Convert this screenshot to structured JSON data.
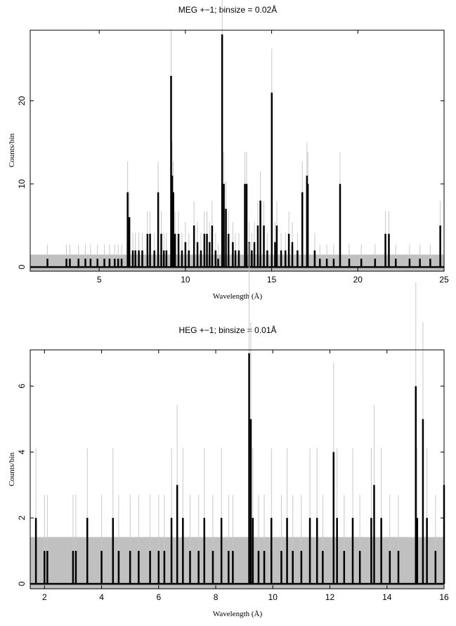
{
  "chart_data": [
    {
      "type": "line",
      "title": "MEG +−1; binsize = 0.02Å",
      "xlabel": "Wavelength (Å)",
      "ylabel": "Counts/bin",
      "xlim": [
        1,
        25
      ],
      "ylim": [
        -0.5,
        28.5
      ],
      "xticks": [
        5,
        10,
        15,
        20,
        25
      ],
      "yticks": [
        0,
        10,
        20
      ],
      "background_band": [
        0,
        1.5
      ],
      "colors": {
        "band": "#c0c0c0",
        "errors": "#c8c8c8",
        "data": "#000000"
      },
      "lines": [
        {
          "x": 2.0,
          "y": 1
        },
        {
          "x": 3.1,
          "y": 1
        },
        {
          "x": 3.3,
          "y": 1
        },
        {
          "x": 3.8,
          "y": 1
        },
        {
          "x": 4.2,
          "y": 1
        },
        {
          "x": 4.5,
          "y": 1
        },
        {
          "x": 4.9,
          "y": 1
        },
        {
          "x": 5.3,
          "y": 1
        },
        {
          "x": 5.6,
          "y": 1
        },
        {
          "x": 5.9,
          "y": 1
        },
        {
          "x": 6.1,
          "y": 1
        },
        {
          "x": 6.3,
          "y": 1
        },
        {
          "x": 6.65,
          "y": 9
        },
        {
          "x": 6.75,
          "y": 6
        },
        {
          "x": 6.95,
          "y": 2
        },
        {
          "x": 7.1,
          "y": 2
        },
        {
          "x": 7.3,
          "y": 2
        },
        {
          "x": 7.5,
          "y": 2
        },
        {
          "x": 7.8,
          "y": 4
        },
        {
          "x": 7.95,
          "y": 4
        },
        {
          "x": 8.2,
          "y": 2
        },
        {
          "x": 8.42,
          "y": 9
        },
        {
          "x": 8.6,
          "y": 4
        },
        {
          "x": 8.75,
          "y": 2
        },
        {
          "x": 8.9,
          "y": 2
        },
        {
          "x": 9.17,
          "y": 23
        },
        {
          "x": 9.23,
          "y": 11
        },
        {
          "x": 9.3,
          "y": 9
        },
        {
          "x": 9.4,
          "y": 4
        },
        {
          "x": 9.6,
          "y": 4
        },
        {
          "x": 9.8,
          "y": 2
        },
        {
          "x": 10.0,
          "y": 3
        },
        {
          "x": 10.2,
          "y": 2
        },
        {
          "x": 10.5,
          "y": 5
        },
        {
          "x": 10.7,
          "y": 3
        },
        {
          "x": 10.9,
          "y": 2
        },
        {
          "x": 11.1,
          "y": 4
        },
        {
          "x": 11.25,
          "y": 4
        },
        {
          "x": 11.4,
          "y": 3
        },
        {
          "x": 11.55,
          "y": 5
        },
        {
          "x": 11.75,
          "y": 2
        },
        {
          "x": 11.9,
          "y": 1
        },
        {
          "x": 12.13,
          "y": 28
        },
        {
          "x": 12.23,
          "y": 10
        },
        {
          "x": 12.35,
          "y": 7
        },
        {
          "x": 12.5,
          "y": 4
        },
        {
          "x": 12.75,
          "y": 3
        },
        {
          "x": 12.9,
          "y": 2
        },
        {
          "x": 13.1,
          "y": 2
        },
        {
          "x": 13.45,
          "y": 10
        },
        {
          "x": 13.55,
          "y": 10
        },
        {
          "x": 13.7,
          "y": 3
        },
        {
          "x": 13.85,
          "y": 2
        },
        {
          "x": 14.0,
          "y": 3
        },
        {
          "x": 14.2,
          "y": 5
        },
        {
          "x": 14.35,
          "y": 8
        },
        {
          "x": 14.55,
          "y": 5
        },
        {
          "x": 14.75,
          "y": 2
        },
        {
          "x": 15.01,
          "y": 21
        },
        {
          "x": 15.2,
          "y": 3
        },
        {
          "x": 15.3,
          "y": 5
        },
        {
          "x": 15.55,
          "y": 2
        },
        {
          "x": 15.8,
          "y": 2
        },
        {
          "x": 16.0,
          "y": 4
        },
        {
          "x": 16.2,
          "y": 3
        },
        {
          "x": 16.5,
          "y": 2
        },
        {
          "x": 16.78,
          "y": 9
        },
        {
          "x": 17.05,
          "y": 11
        },
        {
          "x": 17.1,
          "y": 10
        },
        {
          "x": 17.5,
          "y": 2
        },
        {
          "x": 17.8,
          "y": 1
        },
        {
          "x": 18.2,
          "y": 1
        },
        {
          "x": 18.6,
          "y": 1
        },
        {
          "x": 18.97,
          "y": 10
        },
        {
          "x": 19.5,
          "y": 1
        },
        {
          "x": 20.2,
          "y": 1
        },
        {
          "x": 21.0,
          "y": 1
        },
        {
          "x": 21.6,
          "y": 4
        },
        {
          "x": 21.8,
          "y": 4
        },
        {
          "x": 22.2,
          "y": 1
        },
        {
          "x": 23.0,
          "y": 1
        },
        {
          "x": 23.6,
          "y": 1
        },
        {
          "x": 24.2,
          "y": 1
        },
        {
          "x": 24.78,
          "y": 5
        }
      ]
    },
    {
      "type": "line",
      "title": "HEG +−1; binsize = 0.01Å",
      "xlabel": "Wavelength (Å)",
      "ylabel": "Counts/bin",
      "xlim": [
        1.5,
        16
      ],
      "ylim": [
        -0.15,
        7.1
      ],
      "xticks": [
        2,
        4,
        6,
        8,
        10,
        12,
        14,
        16
      ],
      "yticks": [
        0,
        2,
        4,
        6
      ],
      "background_band": [
        0,
        1.42
      ],
      "colors": {
        "band": "#c0c0c0",
        "errors": "#c8c8c8",
        "data": "#000000"
      },
      "lines": [
        {
          "x": 1.7,
          "y": 2
        },
        {
          "x": 2.0,
          "y": 1
        },
        {
          "x": 2.1,
          "y": 1
        },
        {
          "x": 3.0,
          "y": 1
        },
        {
          "x": 3.1,
          "y": 1
        },
        {
          "x": 3.5,
          "y": 2
        },
        {
          "x": 4.0,
          "y": 1
        },
        {
          "x": 4.4,
          "y": 2
        },
        {
          "x": 4.6,
          "y": 1
        },
        {
          "x": 5.0,
          "y": 1
        },
        {
          "x": 5.3,
          "y": 1
        },
        {
          "x": 5.7,
          "y": 1
        },
        {
          "x": 6.0,
          "y": 1
        },
        {
          "x": 6.2,
          "y": 1
        },
        {
          "x": 6.45,
          "y": 2
        },
        {
          "x": 6.65,
          "y": 3
        },
        {
          "x": 6.85,
          "y": 2
        },
        {
          "x": 7.1,
          "y": 1
        },
        {
          "x": 7.4,
          "y": 1
        },
        {
          "x": 7.6,
          "y": 2
        },
        {
          "x": 7.9,
          "y": 1
        },
        {
          "x": 8.2,
          "y": 2
        },
        {
          "x": 8.45,
          "y": 1
        },
        {
          "x": 8.6,
          "y": 1
        },
        {
          "x": 9.17,
          "y": 7
        },
        {
          "x": 9.23,
          "y": 5
        },
        {
          "x": 9.3,
          "y": 2
        },
        {
          "x": 9.5,
          "y": 1
        },
        {
          "x": 9.7,
          "y": 1
        },
        {
          "x": 9.95,
          "y": 2
        },
        {
          "x": 10.3,
          "y": 1
        },
        {
          "x": 10.5,
          "y": 2
        },
        {
          "x": 10.7,
          "y": 1
        },
        {
          "x": 11.0,
          "y": 1
        },
        {
          "x": 11.3,
          "y": 2
        },
        {
          "x": 11.55,
          "y": 2
        },
        {
          "x": 11.75,
          "y": 1
        },
        {
          "x": 12.13,
          "y": 4
        },
        {
          "x": 12.25,
          "y": 2
        },
        {
          "x": 12.5,
          "y": 1
        },
        {
          "x": 12.8,
          "y": 2
        },
        {
          "x": 13.05,
          "y": 1
        },
        {
          "x": 13.45,
          "y": 2
        },
        {
          "x": 13.55,
          "y": 3
        },
        {
          "x": 13.8,
          "y": 2
        },
        {
          "x": 14.1,
          "y": 1
        },
        {
          "x": 14.4,
          "y": 1
        },
        {
          "x": 15.01,
          "y": 6
        },
        {
          "x": 15.06,
          "y": 2
        },
        {
          "x": 15.26,
          "y": 5
        },
        {
          "x": 15.4,
          "y": 2
        },
        {
          "x": 15.7,
          "y": 1
        },
        {
          "x": 16.0,
          "y": 3
        }
      ]
    }
  ]
}
